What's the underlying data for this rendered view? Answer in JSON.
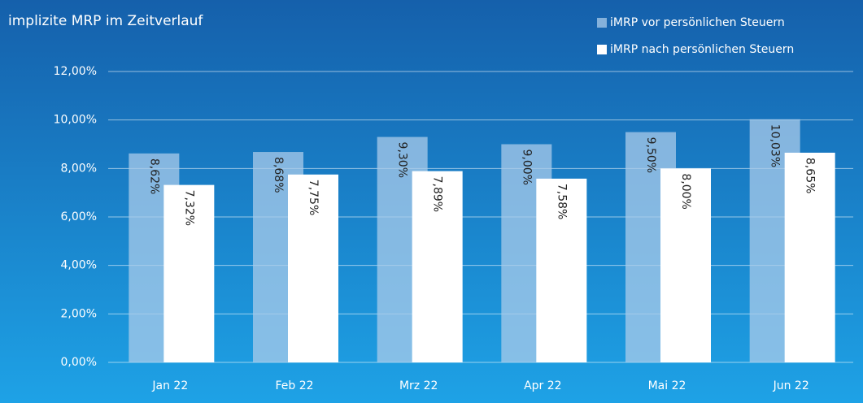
{
  "chart_data": {
    "type": "bar",
    "title": "implizite MRP im Zeitverlauf",
    "categories": [
      "Jan 22",
      "Feb 22",
      "Mrz 22",
      "Apr 22",
      "Mai 22",
      "Jun 22"
    ],
    "series": [
      {
        "name": "iMRP vor persönlichen Steuern",
        "color": "#a9cbe9",
        "values": [
          8.62,
          8.68,
          9.3,
          9.0,
          9.5,
          10.03
        ],
        "value_labels": [
          "8,62%",
          "8,68%",
          "9,30%",
          "9,00%",
          "9,50%",
          "10,03%"
        ]
      },
      {
        "name": "iMRP nach persönlichen Steuern",
        "color": "#ffffff",
        "values": [
          7.32,
          7.75,
          7.89,
          7.58,
          8.0,
          8.65
        ],
        "value_labels": [
          "7,32%",
          "7,75%",
          "7,89%",
          "7,58%",
          "8,00%",
          "8,65%"
        ]
      }
    ],
    "ylim": [
      0,
      12
    ],
    "yticks": [
      {
        "value": 0,
        "label": "0,00%"
      },
      {
        "value": 2,
        "label": "2,00%"
      },
      {
        "value": 4,
        "label": "4,00%"
      },
      {
        "value": 6,
        "label": "6,00%"
      },
      {
        "value": 8,
        "label": "8,00%"
      },
      {
        "value": 10,
        "label": "10,00%"
      },
      {
        "value": 12,
        "label": "12,00%"
      }
    ],
    "grid": true
  }
}
